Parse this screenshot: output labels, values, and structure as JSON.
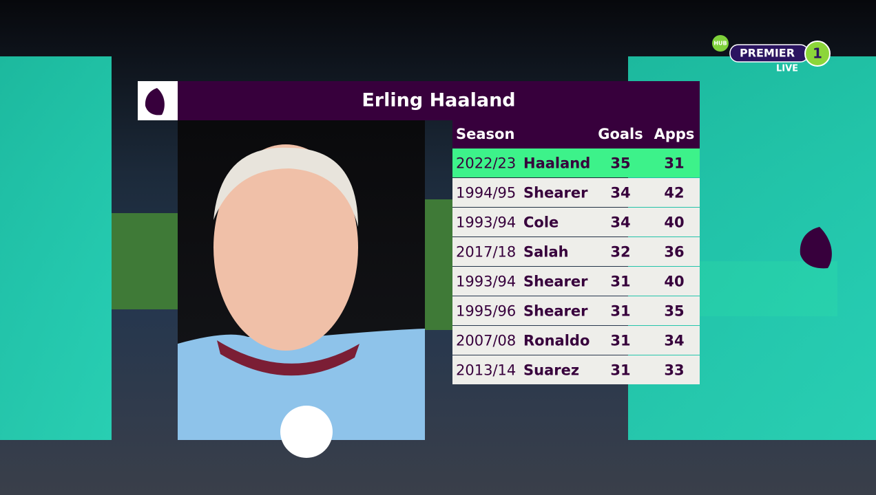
{
  "title": "Erling Haaland",
  "channel": {
    "badge": "HUB",
    "name": "PREMIER",
    "number": "1",
    "status": "LIVE"
  },
  "table": {
    "headers": [
      "Season",
      "Goals",
      "Apps"
    ],
    "rows": [
      {
        "season": "2022/23",
        "player": "Haaland",
        "goals": 35,
        "apps": 31
      },
      {
        "season": "1994/95",
        "player": "Shearer",
        "goals": 34,
        "apps": 42
      },
      {
        "season": "1993/94",
        "player": "Cole",
        "goals": 34,
        "apps": 40
      },
      {
        "season": "2017/18",
        "player": "Salah",
        "goals": 32,
        "apps": 36
      },
      {
        "season": "1993/94",
        "player": "Shearer",
        "goals": 31,
        "apps": 40
      },
      {
        "season": "1995/96",
        "player": "Shearer",
        "goals": 31,
        "apps": 35
      },
      {
        "season": "2007/08",
        "player": "Ronaldo",
        "goals": 31,
        "apps": 34
      },
      {
        "season": "2013/14",
        "player": "Suarez",
        "goals": 31,
        "apps": 33
      }
    ]
  }
}
